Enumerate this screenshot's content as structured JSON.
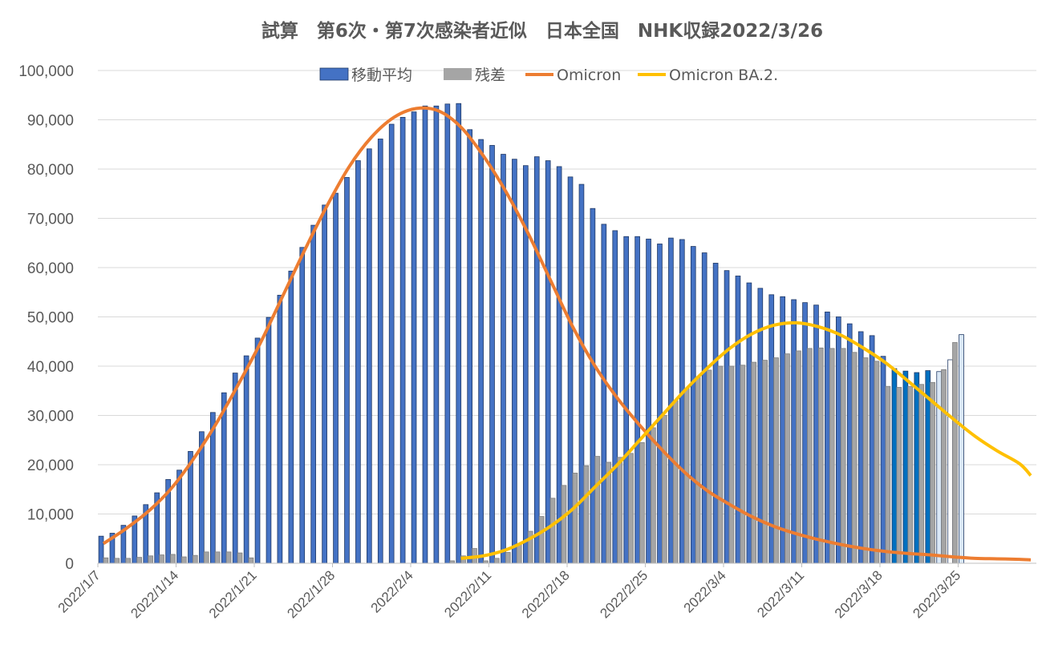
{
  "chart_data": {
    "type": "bar",
    "title": "試算　第6次・第7次感染者近似　日本全国　NHK収録2022/3/26",
    "xlabel": "",
    "ylabel": "",
    "ylim": [
      0,
      100000
    ],
    "yticks": [
      0,
      10000,
      20000,
      30000,
      40000,
      50000,
      60000,
      70000,
      80000,
      90000,
      100000
    ],
    "ytick_labels": [
      "0",
      "10,000",
      "20,000",
      "30,000",
      "40,000",
      "50,000",
      "60,000",
      "70,000",
      "80,000",
      "90,000",
      "100,000"
    ],
    "x_start": "2022/1/7",
    "x_end": "2022/3/31",
    "xtick_labels": [
      "2022/1/7",
      "2022/1/14",
      "2022/1/21",
      "2022/1/28",
      "2022/2/4",
      "2022/2/11",
      "2022/2/18",
      "2022/2/25",
      "2022/3/4",
      "2022/3/11",
      "2022/3/18",
      "2022/3/25"
    ],
    "legend_position": "top-center",
    "grid": true,
    "series": [
      {
        "name": "移動平均",
        "kind": "bar",
        "color": "#4472c4",
        "x": [
          "2022/1/7",
          "2022/1/8",
          "2022/1/9",
          "2022/1/10",
          "2022/1/11",
          "2022/1/12",
          "2022/1/13",
          "2022/1/14",
          "2022/1/15",
          "2022/1/16",
          "2022/1/17",
          "2022/1/18",
          "2022/1/19",
          "2022/1/20",
          "2022/1/21",
          "2022/1/22",
          "2022/1/23",
          "2022/1/24",
          "2022/1/25",
          "2022/1/26",
          "2022/1/27",
          "2022/1/28",
          "2022/1/29",
          "2022/1/30",
          "2022/1/31",
          "2022/2/1",
          "2022/2/2",
          "2022/2/3",
          "2022/2/4",
          "2022/2/5",
          "2022/2/6",
          "2022/2/7",
          "2022/2/8",
          "2022/2/9",
          "2022/2/10",
          "2022/2/11",
          "2022/2/12",
          "2022/2/13",
          "2022/2/14",
          "2022/2/15",
          "2022/2/16",
          "2022/2/17",
          "2022/2/18",
          "2022/2/19",
          "2022/2/20",
          "2022/2/21",
          "2022/2/22",
          "2022/2/23",
          "2022/2/24",
          "2022/2/25",
          "2022/2/26",
          "2022/2/27",
          "2022/2/28",
          "2022/3/1",
          "2022/3/2",
          "2022/3/3",
          "2022/3/4",
          "2022/3/5",
          "2022/3/6",
          "2022/3/7",
          "2022/3/8",
          "2022/3/9",
          "2022/3/10",
          "2022/3/11",
          "2022/3/12",
          "2022/3/13",
          "2022/3/14",
          "2022/3/15",
          "2022/3/16",
          "2022/3/17",
          "2022/3/18",
          "2022/3/19",
          "2022/3/20",
          "2022/3/21",
          "2022/3/22",
          "2022/3/23",
          "2022/3/24",
          "2022/3/25",
          "2022/3/26"
        ],
        "values": [
          5500,
          6100,
          7700,
          9600,
          11900,
          14300,
          17000,
          18900,
          22700,
          26700,
          30600,
          34600,
          38600,
          42100,
          45700,
          49900,
          54400,
          59300,
          64100,
          68600,
          72700,
          75100,
          78300,
          81700,
          84100,
          86100,
          89100,
          90500,
          91600,
          92800,
          92800,
          93200,
          93300,
          88000,
          86000,
          84800,
          83000,
          82000,
          80700,
          82500,
          81700,
          80500,
          78400,
          76900,
          72000,
          68800,
          67500,
          66300,
          66300,
          65800,
          64800,
          66000,
          65700,
          64300,
          63000,
          60900,
          59400,
          58300,
          56900,
          55800,
          54500,
          54100,
          53500,
          52900,
          52400,
          51000,
          50000,
          48600,
          47000,
          46200,
          42000,
          39500,
          39000,
          38700,
          39100,
          38900,
          41300,
          46400,
          null
        ],
        "highlight_colors": {
          "2022/3/19": "#0070c0",
          "2022/3/20": "#0070c0",
          "2022/3/21": "#0070c0",
          "2022/3/22": "#0070c0",
          "2022/3/23": "#d9e7f5",
          "2022/3/24": "#ffffff",
          "2022/3/25": "#d9e7f5"
        }
      },
      {
        "name": "残差",
        "kind": "bar",
        "color": "#a5a5a5",
        "x": [
          "2022/1/7",
          "2022/1/8",
          "2022/1/9",
          "2022/1/10",
          "2022/1/11",
          "2022/1/12",
          "2022/1/13",
          "2022/1/14",
          "2022/1/15",
          "2022/1/16",
          "2022/1/17",
          "2022/1/18",
          "2022/1/19",
          "2022/1/20",
          "2022/1/21",
          "2022/1/22",
          "2022/1/23",
          "2022/1/24",
          "2022/1/25",
          "2022/1/26",
          "2022/1/27",
          "2022/1/28",
          "2022/1/29",
          "2022/1/30",
          "2022/1/31",
          "2022/2/1",
          "2022/2/2",
          "2022/2/3",
          "2022/2/4",
          "2022/2/5",
          "2022/2/6",
          "2022/2/7",
          "2022/2/8",
          "2022/2/9",
          "2022/2/10",
          "2022/2/11",
          "2022/2/12",
          "2022/2/13",
          "2022/2/14",
          "2022/2/15",
          "2022/2/16",
          "2022/2/17",
          "2022/2/18",
          "2022/2/19",
          "2022/2/20",
          "2022/2/21",
          "2022/2/22",
          "2022/2/23",
          "2022/2/24",
          "2022/2/25",
          "2022/2/26",
          "2022/2/27",
          "2022/2/28",
          "2022/3/1",
          "2022/3/2",
          "2022/3/3",
          "2022/3/4",
          "2022/3/5",
          "2022/3/6",
          "2022/3/7",
          "2022/3/8",
          "2022/3/9",
          "2022/3/10",
          "2022/3/11",
          "2022/3/12",
          "2022/3/13",
          "2022/3/14",
          "2022/3/15",
          "2022/3/16",
          "2022/3/17",
          "2022/3/18",
          "2022/3/19",
          "2022/3/20",
          "2022/3/21",
          "2022/3/22",
          "2022/3/23",
          "2022/3/24",
          "2022/3/25",
          "2022/3/26"
        ],
        "values": [
          1100,
          1000,
          1000,
          1200,
          1500,
          1700,
          1800,
          1300,
          1600,
          2300,
          2300,
          2300,
          2100,
          1100,
          0,
          0,
          0,
          0,
          0,
          0,
          0,
          0,
          0,
          0,
          0,
          0,
          0,
          0,
          0,
          0,
          0,
          500,
          1500,
          3000,
          500,
          1000,
          2200,
          3800,
          6500,
          9500,
          13200,
          15800,
          18300,
          19800,
          21700,
          20500,
          21500,
          22300,
          24500,
          27500,
          30000,
          33000,
          35500,
          37800,
          39200,
          40000,
          40000,
          40200,
          40800,
          41200,
          41700,
          42500,
          43100,
          43600,
          43700,
          43600,
          43600,
          42800,
          41700,
          41000,
          35900,
          35700,
          35900,
          36300,
          36700,
          39300,
          44800,
          null,
          null
        ],
        "highlight_colors": {
          "2022/3/25": "#c9d6e3",
          "2022/3/26": "#a0b4c8"
        }
      },
      {
        "name": "Omicron",
        "kind": "line",
        "color": "#ed7d31",
        "x": [
          "2022/1/7",
          "2022/1/9",
          "2022/1/11",
          "2022/1/13",
          "2022/1/15",
          "2022/1/17",
          "2022/1/19",
          "2022/1/21",
          "2022/1/23",
          "2022/1/25",
          "2022/1/27",
          "2022/1/29",
          "2022/1/31",
          "2022/2/2",
          "2022/2/4",
          "2022/2/6",
          "2022/2/8",
          "2022/2/10",
          "2022/2/12",
          "2022/2/14",
          "2022/2/16",
          "2022/2/18",
          "2022/2/20",
          "2022/2/22",
          "2022/2/24",
          "2022/2/26",
          "2022/2/28",
          "2022/3/2",
          "2022/3/4",
          "2022/3/6",
          "2022/3/8",
          "2022/3/10",
          "2022/3/12",
          "2022/3/14",
          "2022/3/16",
          "2022/3/18",
          "2022/3/20",
          "2022/3/22",
          "2022/3/24",
          "2022/3/26",
          "2022/3/28",
          "2022/3/30",
          "2022/3/31"
        ],
        "values": [
          4000,
          7000,
          10500,
          15000,
          21000,
          28000,
          36000,
          44500,
          54000,
          63500,
          72500,
          80500,
          86500,
          90500,
          92300,
          91800,
          88500,
          82700,
          75500,
          67000,
          57500,
          48000,
          40000,
          33500,
          28000,
          23000,
          18500,
          14800,
          12000,
          9500,
          7500,
          6000,
          4800,
          3800,
          3000,
          2400,
          2000,
          1700,
          1300,
          1000,
          900,
          800,
          700
        ]
      },
      {
        "name": "Omicron BA.2.",
        "kind": "line",
        "color": "#ffc000",
        "x": [
          "2022/2/8",
          "2022/2/10",
          "2022/2/12",
          "2022/2/14",
          "2022/2/16",
          "2022/2/18",
          "2022/2/20",
          "2022/2/22",
          "2022/2/24",
          "2022/2/26",
          "2022/2/28",
          "2022/3/2",
          "2022/3/4",
          "2022/3/6",
          "2022/3/8",
          "2022/3/10",
          "2022/3/12",
          "2022/3/14",
          "2022/3/16",
          "2022/3/18",
          "2022/3/20",
          "2022/3/22",
          "2022/3/24",
          "2022/3/26",
          "2022/3/28",
          "2022/3/30",
          "2022/3/31"
        ],
        "values": [
          1000,
          1500,
          2700,
          4800,
          7500,
          11000,
          15500,
          20000,
          25000,
          30000,
          35000,
          39500,
          43500,
          46500,
          48300,
          48800,
          48000,
          46300,
          43700,
          40700,
          37000,
          33200,
          29400,
          25800,
          22800,
          20200,
          17800
        ]
      }
    ]
  }
}
